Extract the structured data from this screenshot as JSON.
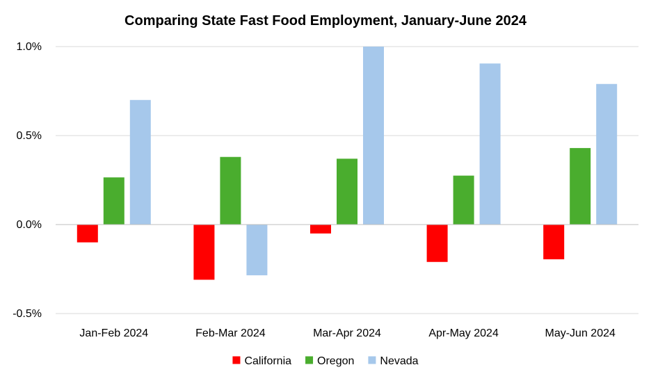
{
  "chart_data": {
    "type": "bar",
    "title": "Comparing State Fast Food Employment, January-June 2024",
    "xlabel": "",
    "ylabel": "",
    "categories": [
      "Jan-Feb 2024",
      "Feb-Mar 2024",
      "Mar-Apr 2024",
      "Apr-May 2024",
      "May-Jun 2024"
    ],
    "series": [
      {
        "name": "California",
        "color": "#ff0000",
        "values": [
          -0.1,
          -0.31,
          -0.05,
          -0.21,
          -0.195
        ]
      },
      {
        "name": "Oregon",
        "color": "#4aad2e",
        "values": [
          0.265,
          0.38,
          0.37,
          0.275,
          0.43
        ]
      },
      {
        "name": "Nevada",
        "color": "#a6c8eb",
        "values": [
          0.7,
          -0.285,
          1.0,
          0.905,
          0.79
        ]
      }
    ],
    "ylim": [
      -0.5,
      1.0
    ],
    "yticks": [
      -0.5,
      0.0,
      0.5,
      1.0
    ],
    "ytick_labels": [
      "-0.5%",
      "0.0%",
      "0.5%",
      "1.0%"
    ],
    "grid": true,
    "gridline_color": "#d9d9d9",
    "legend_position": "bottom"
  }
}
